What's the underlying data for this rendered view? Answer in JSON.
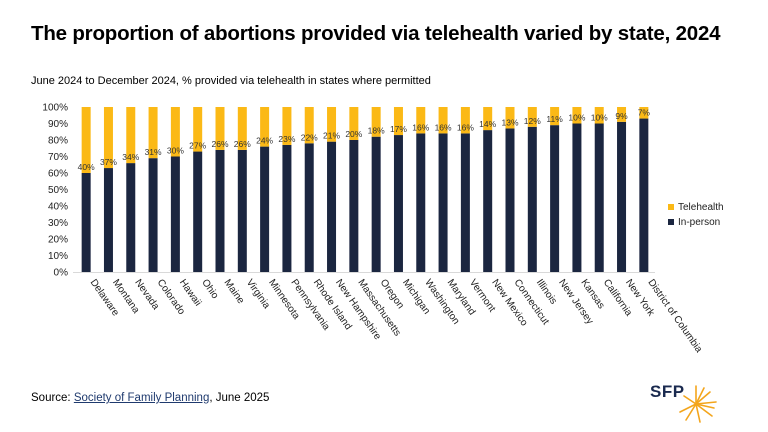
{
  "title": "The proportion of abortions provided via telehealth varied by state, 2024",
  "subtitle": "June 2024 to December 2024, % provided via telehealth in states where permitted",
  "source": {
    "prefix": "Source: ",
    "link_text": "Society of Family Planning",
    "suffix": ", June 2025"
  },
  "logo": {
    "text": "SFP"
  },
  "colors": {
    "telehealth": "#fbb916",
    "in_person": "#1b2640",
    "axis_text": "#222222",
    "grid": "#d9d9d9"
  },
  "chart_data": {
    "type": "bar",
    "stacked": true,
    "categories": [
      "Delaware",
      "Montana",
      "Nevada",
      "Colorado",
      "Hawaii",
      "Ohio",
      "Maine",
      "Virginia",
      "Minnesota",
      "Pennsylvania",
      "Rhode Island",
      "New Hampshire",
      "Massachusetts",
      "Oregon",
      "Michigan",
      "Washington",
      "Maryland",
      "Vermont",
      "New Mexico",
      "Connecticut",
      "Illinois",
      "New Jersey",
      "Kansas",
      "California",
      "New York",
      "District of Columbia"
    ],
    "series": [
      {
        "name": "In-person",
        "values": [
          60,
          63,
          66,
          69,
          70,
          73,
          74,
          74,
          76,
          77,
          78,
          79,
          80,
          82,
          83,
          84,
          84,
          84,
          86,
          87,
          88,
          89,
          90,
          90,
          91,
          93
        ]
      },
      {
        "name": "Telehealth",
        "values": [
          40,
          37,
          34,
          31,
          30,
          27,
          26,
          26,
          24,
          23,
          22,
          21,
          20,
          18,
          17,
          16,
          16,
          16,
          14,
          13,
          12,
          11,
          10,
          10,
          9,
          7
        ]
      }
    ],
    "data_labels": [
      "40%",
      "37%",
      "34%",
      "31%",
      "30%",
      "27%",
      "26%",
      "26%",
      "24%",
      "23%",
      "22%",
      "21%",
      "20%",
      "18%",
      "17%",
      "16%",
      "16%",
      "16%",
      "14%",
      "13%",
      "12%",
      "11%",
      "10%",
      "10%",
      "9%",
      "7%"
    ],
    "y_ticks": [
      "0%",
      "10%",
      "20%",
      "30%",
      "40%",
      "50%",
      "60%",
      "70%",
      "80%",
      "90%",
      "100%"
    ],
    "ylim": [
      0,
      100
    ],
    "legend": [
      "Telehealth",
      "In-person"
    ],
    "legend_position": "right"
  }
}
